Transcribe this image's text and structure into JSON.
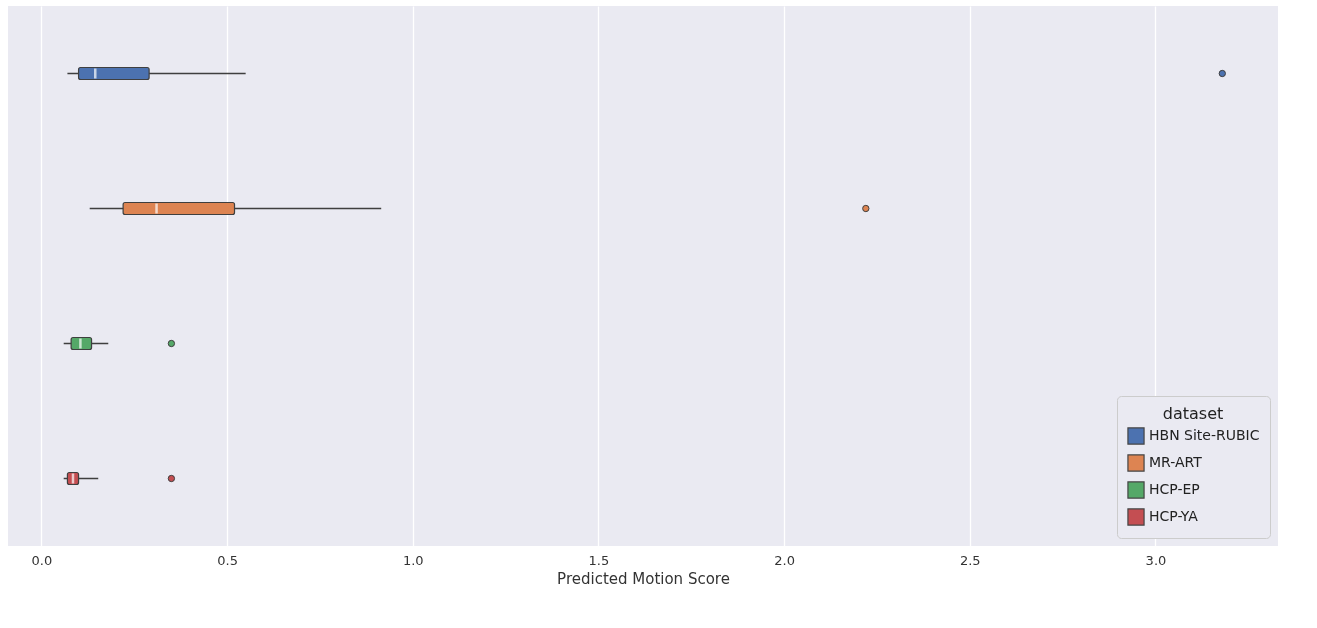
{
  "chart_data": {
    "type": "box",
    "orientation": "horizontal",
    "xlabel": "Predicted Motion Score",
    "legend_title": "dataset",
    "legend": "bottom right",
    "grid": "x",
    "tick_labels": "x",
    "categories": [
      null,
      null,
      null,
      null
    ],
    "xlim": [
      -0.09,
      3.33
    ],
    "xticks": [
      {
        "value": 0,
        "label": "0.0"
      },
      {
        "value": 0.5,
        "label": "0.5"
      },
      {
        "value": 1,
        "label": "1.0"
      },
      {
        "value": 1.5,
        "label": "1.5"
      },
      {
        "value": 2,
        "label": "2.0"
      },
      {
        "value": 2.5,
        "label": "2.5"
      },
      {
        "value": 3,
        "label": "3.0"
      }
    ],
    "series": [
      {
        "name": "HBN Site-RUBIC",
        "color": "#4c72b0",
        "boxes": [
          {
            "low": 0.07,
            "q1": 0.1,
            "median": 0.145,
            "q3": 0.29,
            "high": 0.55,
            "outliers": [
              3.18
            ]
          },
          null,
          null,
          null
        ]
      },
      {
        "name": "MR-ART",
        "color": "#dd8452",
        "boxes": [
          null,
          {
            "low": 0.13,
            "q1": 0.22,
            "median": 0.31,
            "q3": 0.52,
            "high": 0.915,
            "outliers": [
              2.22
            ]
          },
          null,
          null
        ]
      },
      {
        "name": "HCP-EP",
        "color": "#55a868",
        "boxes": [
          null,
          null,
          {
            "low": 0.06,
            "q1": 0.08,
            "median": 0.105,
            "q3": 0.135,
            "high": 0.18,
            "outliers": [
              0.35
            ]
          },
          null
        ]
      },
      {
        "name": "HCP-YA",
        "color": "#c44e52",
        "boxes": [
          null,
          null,
          null,
          {
            "low": 0.06,
            "q1": 0.07,
            "median": 0.085,
            "q3": 0.1,
            "high": 0.153,
            "outliers": [
              0.35
            ]
          }
        ]
      }
    ]
  }
}
